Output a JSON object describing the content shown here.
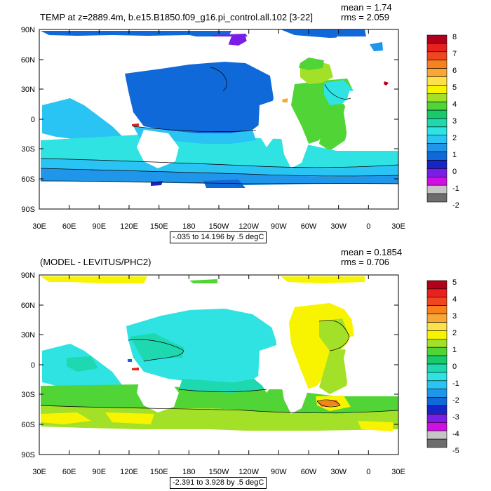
{
  "panels": [
    {
      "title_left": "TEMP at z=2889.4m, b.e15.B1850.f09_g16.pi_control.all.102 [3-22]",
      "mean_text": "mean = 1.74",
      "rms_text": "rms = 2.059",
      "range_text": "-.035 to 14.196 by .5 degC",
      "colorbar": {
        "labels": [
          "8",
          "7",
          "6",
          "5",
          "4",
          "3",
          "2",
          "1",
          "0",
          "-1",
          "-2"
        ],
        "colors": [
          "#b3001a",
          "#e8201e",
          "#f0461f",
          "#f7811d",
          "#f8a736",
          "#fde14a",
          "#f8f400",
          "#a3e028",
          "#51d435",
          "#18ca6a",
          "#1ed8b0",
          "#2fe3e3",
          "#29c3f4",
          "#1f96ea",
          "#1069d8",
          "#1525c8",
          "#7a1de6",
          "#d010e2",
          "#c5c5c5",
          "#6d6d6d"
        ]
      }
    },
    {
      "title_left": "(MODEL - LEVITUS/PHC2)",
      "mean_text": "mean = 0.1854",
      "rms_text": "rms = 0.706",
      "range_text": "-2.391 to 3.928 by .5 degC",
      "colorbar": {
        "labels": [
          "5",
          "4",
          "3",
          "2",
          "1",
          "0",
          "-1",
          "-2",
          "-3",
          "-4",
          "-5"
        ],
        "colors": [
          "#b3001a",
          "#e8201e",
          "#f0461f",
          "#f7811d",
          "#f8a736",
          "#fde14a",
          "#f8f400",
          "#a3e028",
          "#51d435",
          "#18ca6a",
          "#1ed8b0",
          "#2fe3e3",
          "#29c3f4",
          "#1f96ea",
          "#1069d8",
          "#1525c8",
          "#7a1de6",
          "#d010e2",
          "#c5c5c5",
          "#6d6d6d"
        ]
      }
    }
  ],
  "axes": {
    "x_ticks": [
      "30E",
      "60E",
      "90E",
      "120E",
      "150E",
      "180",
      "150W",
      "120W",
      "90W",
      "60W",
      "30W",
      "0",
      "30E"
    ],
    "y_ticks": [
      "90N",
      "60N",
      "30N",
      "0",
      "30S",
      "60S",
      "90S"
    ]
  }
}
